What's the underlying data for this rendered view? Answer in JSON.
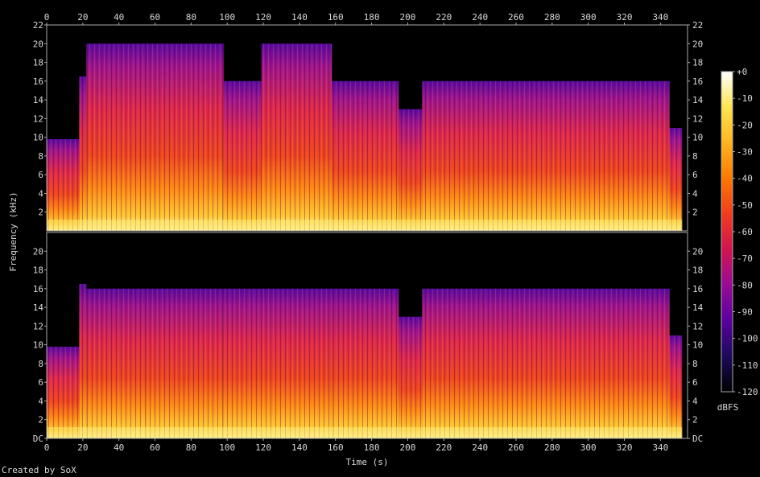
{
  "credit": "Created by SoX",
  "chart_data": {
    "type": "heatmap",
    "title": "",
    "xlabel": "Time (s)",
    "ylabel": "Frequency (kHz)",
    "xlim": [
      0,
      355
    ],
    "ylim": [
      0,
      22
    ],
    "x_ticks": [
      0,
      20,
      40,
      60,
      80,
      100,
      120,
      140,
      160,
      180,
      200,
      220,
      240,
      260,
      280,
      300,
      320,
      340
    ],
    "y_ticks_top": [
      "2",
      "4",
      "6",
      "8",
      "10",
      "12",
      "14",
      "16",
      "18",
      "20",
      "22"
    ],
    "y_ticks_bottom": [
      "DC",
      "2",
      "4",
      "6",
      "8",
      "10",
      "12",
      "14",
      "16",
      "18",
      "20"
    ],
    "colorbar": {
      "label": "dBFS",
      "range": [
        -120,
        0
      ],
      "ticks": [
        "+0",
        "-10",
        "-20",
        "-30",
        "-40",
        "-50",
        "-60",
        "-70",
        "-80",
        "-90",
        "-100",
        "-110",
        "-120"
      ],
      "colors": [
        "#000000",
        "#1c0a5a",
        "#5a00a0",
        "#9a0a96",
        "#d21450",
        "#f03c1e",
        "#ff7800",
        "#ffb41e",
        "#ffe650",
        "#ffffff"
      ]
    },
    "channels": [
      {
        "segments": [
          {
            "start": 0,
            "end": 18,
            "cutoff_khz": 9.8
          },
          {
            "start": 18,
            "end": 22,
            "cutoff_khz": 16.5
          },
          {
            "start": 22,
            "end": 55,
            "cutoff_khz": 20
          },
          {
            "start": 55,
            "end": 98,
            "cutoff_khz": 20
          },
          {
            "start": 98,
            "end": 119,
            "cutoff_khz": 16
          },
          {
            "start": 119,
            "end": 158,
            "cutoff_khz": 20
          },
          {
            "start": 158,
            "end": 195,
            "cutoff_khz": 16
          },
          {
            "start": 195,
            "end": 208,
            "cutoff_khz": 13
          },
          {
            "start": 208,
            "end": 345,
            "cutoff_khz": 16
          },
          {
            "start": 345,
            "end": 352,
            "cutoff_khz": 11
          }
        ]
      },
      {
        "segments": [
          {
            "start": 0,
            "end": 18,
            "cutoff_khz": 9.8
          },
          {
            "start": 18,
            "end": 22,
            "cutoff_khz": 16.5
          },
          {
            "start": 22,
            "end": 55,
            "cutoff_khz": 16
          },
          {
            "start": 55,
            "end": 98,
            "cutoff_khz": 16
          },
          {
            "start": 98,
            "end": 119,
            "cutoff_khz": 16
          },
          {
            "start": 119,
            "end": 158,
            "cutoff_khz": 16
          },
          {
            "start": 158,
            "end": 195,
            "cutoff_khz": 16
          },
          {
            "start": 195,
            "end": 208,
            "cutoff_khz": 13
          },
          {
            "start": 208,
            "end": 345,
            "cutoff_khz": 16
          },
          {
            "start": 345,
            "end": 352,
            "cutoff_khz": 11
          }
        ]
      }
    ]
  }
}
